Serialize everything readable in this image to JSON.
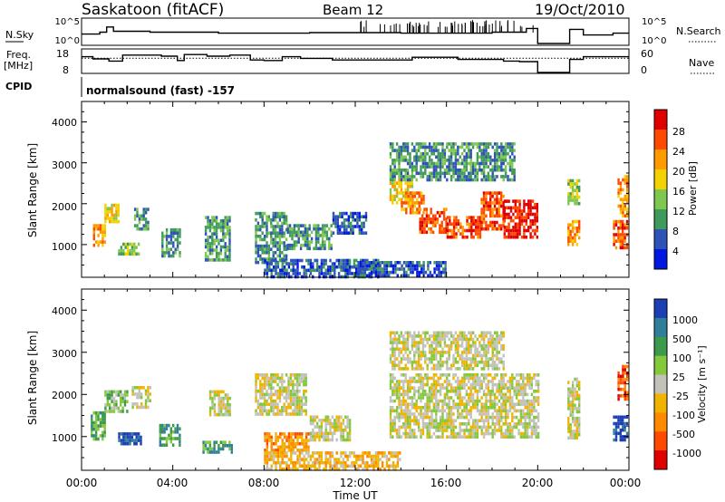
{
  "header": {
    "title": "Saskatoon (fitACF)",
    "beam": "Beam 12",
    "date": "19/Oct/2010"
  },
  "noise_panel": {
    "left_label": "N.Sky",
    "left_ticks": [
      "10^5",
      "10^0"
    ],
    "right_label": "N.Search",
    "right_ticks": [
      "10^5",
      "10^0"
    ]
  },
  "freq_panel": {
    "left_label_line1": "Freq.",
    "left_label_line2": "[MHz]",
    "left_ticks": [
      "18",
      "8"
    ],
    "right_label": "Nave",
    "right_ticks": [
      "60",
      "0"
    ]
  },
  "cpid": {
    "label": "CPID",
    "text": "normalsound (fast) -157"
  },
  "panels": {
    "ylabel": "Slant Range [km]",
    "yticks": [
      "4000",
      "3000",
      "2000",
      "1000"
    ],
    "xlabel": "Time UT",
    "xticks": [
      "00:00",
      "04:00",
      "08:00",
      "12:00",
      "16:00",
      "20:00",
      "00:00"
    ]
  },
  "power_scale": {
    "label": "Power [dB]",
    "ticks": [
      "28",
      "24",
      "20",
      "16",
      "12",
      "8",
      "4"
    ],
    "colors": [
      "#e00000",
      "#ff4a00",
      "#ff9a00",
      "#f2d200",
      "#7ec850",
      "#3f9a5c",
      "#2f52b8",
      "#0018e0"
    ]
  },
  "velocity_scale": {
    "label": "Velocity [m s⁻¹]",
    "ticks": [
      "1000",
      "500",
      "100",
      "25",
      "-25",
      "-100",
      "-500",
      "-1000"
    ],
    "colors": [
      "#1c3fb5",
      "#2f7f9a",
      "#3d9a4c",
      "#84c83c",
      "#c2c2ba",
      "#f0b400",
      "#ff8a00",
      "#ff4a00",
      "#e00000"
    ]
  },
  "chart_data": {
    "type": "heatmap",
    "x_unit": "hours UT",
    "y_unit": "km",
    "xlim": [
      0,
      24
    ],
    "ylim": [
      200,
      4500
    ],
    "power_blobs": [
      {
        "t0": 0.5,
        "t1": 1.0,
        "r0": 950,
        "r1": 1500,
        "level": 5
      },
      {
        "t0": 1.0,
        "t1": 1.6,
        "r0": 1600,
        "r1": 2000,
        "level": 4
      },
      {
        "t0": 1.6,
        "t1": 2.5,
        "r0": 750,
        "r1": 1050,
        "level": 3
      },
      {
        "t0": 2.3,
        "t1": 2.9,
        "r0": 1400,
        "r1": 1900,
        "level": 2
      },
      {
        "t0": 3.5,
        "t1": 4.3,
        "r0": 750,
        "r1": 1400,
        "level": 2
      },
      {
        "t0": 5.4,
        "t1": 6.5,
        "r0": 600,
        "r1": 1700,
        "level": 2
      },
      {
        "t0": 7.6,
        "t1": 9.0,
        "r0": 600,
        "r1": 1800,
        "level": 2
      },
      {
        "t0": 9.0,
        "t1": 11.0,
        "r0": 900,
        "r1": 1500,
        "level": 2
      },
      {
        "t0": 11.0,
        "t1": 12.5,
        "r0": 1300,
        "r1": 1800,
        "level": 1
      },
      {
        "t0": 8.0,
        "t1": 13.0,
        "r0": 250,
        "r1": 650,
        "level": 1
      },
      {
        "t0": 13.5,
        "t1": 14.5,
        "r0": 2000,
        "r1": 2700,
        "level": 4
      },
      {
        "t0": 14.0,
        "t1": 15.0,
        "r0": 1800,
        "r1": 2300,
        "level": 5
      },
      {
        "t0": 14.8,
        "t1": 16.0,
        "r0": 1300,
        "r1": 1900,
        "level": 6
      },
      {
        "t0": 16.0,
        "t1": 17.5,
        "r0": 1200,
        "r1": 1700,
        "level": 6
      },
      {
        "t0": 17.5,
        "t1": 18.5,
        "r0": 1400,
        "r1": 2300,
        "level": 6
      },
      {
        "t0": 18.5,
        "t1": 20.0,
        "r0": 1200,
        "r1": 2100,
        "level": 7
      },
      {
        "t0": 13.5,
        "t1": 19.0,
        "r0": 2600,
        "r1": 3500,
        "level": 2
      },
      {
        "t0": 21.3,
        "t1": 21.8,
        "r0": 1000,
        "r1": 1600,
        "level": 5
      },
      {
        "t0": 21.3,
        "t1": 21.8,
        "r0": 2000,
        "r1": 2600,
        "level": 3
      },
      {
        "t0": 23.3,
        "t1": 23.9,
        "r0": 900,
        "r1": 1600,
        "level": 6
      },
      {
        "t0": 23.5,
        "t1": 23.9,
        "r0": 1700,
        "r1": 2700,
        "level": 5
      },
      {
        "t0": 12.0,
        "t1": 16.0,
        "r0": 250,
        "r1": 600,
        "level": 1
      }
    ],
    "velocity_blobs": [
      {
        "t0": 0.4,
        "t1": 1.0,
        "r0": 950,
        "r1": 1600,
        "level": 2
      },
      {
        "t0": 1.6,
        "t1": 2.6,
        "r0": 800,
        "r1": 1100,
        "level": 0
      },
      {
        "t0": 1.0,
        "t1": 2.0,
        "r0": 1600,
        "r1": 2100,
        "level": 3
      },
      {
        "t0": 3.4,
        "t1": 4.3,
        "r0": 800,
        "r1": 1300,
        "level": 2
      },
      {
        "t0": 2.2,
        "t1": 3.0,
        "r0": 1700,
        "r1": 2200,
        "level": 4
      },
      {
        "t0": 5.3,
        "t1": 6.6,
        "r0": 650,
        "r1": 900,
        "level": 2
      },
      {
        "t0": 5.6,
        "t1": 6.5,
        "r0": 1500,
        "r1": 2100,
        "level": 4
      },
      {
        "t0": 7.6,
        "t1": 9.8,
        "r0": 1500,
        "r1": 2500,
        "level": 4
      },
      {
        "t0": 8.0,
        "t1": 10.0,
        "r0": 700,
        "r1": 1100,
        "level": 6
      },
      {
        "t0": 10.0,
        "t1": 11.8,
        "r0": 900,
        "r1": 1500,
        "level": 4
      },
      {
        "t0": 8.0,
        "t1": 14.0,
        "r0": 250,
        "r1": 650,
        "level": 5
      },
      {
        "t0": 13.5,
        "t1": 20.0,
        "r0": 1000,
        "r1": 2500,
        "level": 4
      },
      {
        "t0": 13.5,
        "t1": 18.5,
        "r0": 2600,
        "r1": 3500,
        "level": 4
      },
      {
        "t0": 21.3,
        "t1": 21.8,
        "r0": 1000,
        "r1": 2400,
        "level": 4
      },
      {
        "t0": 23.3,
        "t1": 23.9,
        "r0": 900,
        "r1": 1500,
        "level": 0
      },
      {
        "t0": 23.5,
        "t1": 23.9,
        "r0": 1900,
        "r1": 2700,
        "level": 7
      }
    ],
    "n_sky_steps": [
      [
        0,
        2
      ],
      [
        0.8,
        2.4
      ],
      [
        1.1,
        3.5
      ],
      [
        1.4,
        2.6
      ],
      [
        3.0,
        2.4
      ],
      [
        6.0,
        2.2
      ],
      [
        10.0,
        2.3
      ],
      [
        14.0,
        2.2
      ],
      [
        18.0,
        2.4
      ],
      [
        19.5,
        3.2
      ],
      [
        20.0,
        0
      ],
      [
        21.4,
        3.0
      ],
      [
        22.0,
        1.8
      ],
      [
        23.3,
        2.2
      ],
      [
        24,
        2.2
      ]
    ],
    "freq_steps": [
      [
        0,
        14.5
      ],
      [
        0.5,
        12.5
      ],
      [
        1.2,
        10.5
      ],
      [
        1.8,
        16.0
      ],
      [
        3.5,
        15.0
      ],
      [
        4.2,
        11.0
      ],
      [
        4.5,
        16.5
      ],
      [
        5.5,
        15.0
      ],
      [
        6.5,
        16.0
      ],
      [
        7.4,
        11.5
      ],
      [
        8.0,
        11.0
      ],
      [
        8.8,
        14.5
      ],
      [
        9.6,
        13.0
      ],
      [
        11.0,
        11.5
      ],
      [
        13.0,
        11.5
      ],
      [
        14.5,
        14.0
      ],
      [
        16.5,
        12.0
      ],
      [
        18.5,
        10.5
      ],
      [
        19.2,
        10.0
      ],
      [
        20.0,
        0
      ],
      [
        21.4,
        12.0
      ],
      [
        22.0,
        14.5
      ],
      [
        24,
        14.5
      ]
    ],
    "nave_level": 18
  }
}
